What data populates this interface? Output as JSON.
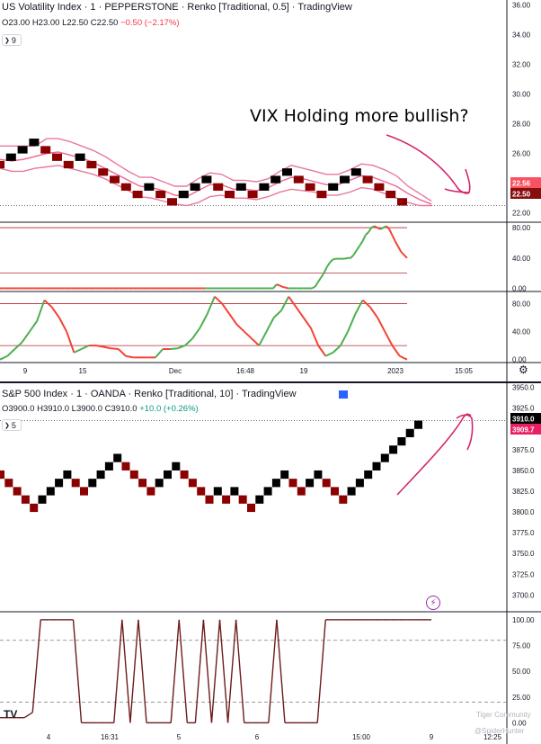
{
  "panel1": {
    "title": "US Volatility Index · 1 · PEPPERSTONE · Renko [Traditional, 0.5] · TradingView",
    "ohlc": {
      "o": "O23.00",
      "h": "H23.00",
      "l": "L22.50",
      "c": "C22.50",
      "change": "−0.50 (−2.17%)"
    },
    "length": "9",
    "annotation": "VIX Holding more bullish?",
    "price_labels": [
      {
        "text": "22.56",
        "color": "#f7525f"
      },
      {
        "text": "22.50",
        "color": "#880e0e"
      }
    ]
  },
  "panel2": {
    "title": "S&P 500 Index · 1 · OANDA · Renko [Traditional, 10] · TradingView",
    "ohlc": {
      "o": "O3900.0",
      "h": "H3910.0",
      "l": "L3900.0",
      "c": "C3910.0",
      "change": "+10.0 (+0.26%)"
    },
    "length": "5",
    "price_labels": [
      {
        "text": "3910.0",
        "color": "#000000"
      },
      {
        "text": "3909.7",
        "color": "#e91e63"
      }
    ]
  },
  "watermark": {
    "line1": "Tiger Community",
    "line2": "@SpiderHunter"
  },
  "icons": {
    "gear": "gear-icon",
    "bolt": "lightning-icon",
    "flag": "flag-icon",
    "logo": "tradingview-logo"
  },
  "chart_data": [
    {
      "type": "renko",
      "name": "vix-price",
      "y_ticks": [
        "22.00",
        "24.00",
        "26.00",
        "28.00",
        "30.00",
        "32.00",
        "34.00",
        "36.00"
      ],
      "ylim": [
        21.5,
        36.2
      ],
      "x_ticks": [
        "9",
        "15",
        "Dec",
        "16:48",
        "19",
        "2023",
        "15:05"
      ],
      "bricks": [
        25.25,
        25.75,
        26.25,
        26.75,
        26.25,
        25.75,
        25.25,
        25.75,
        25.25,
        24.75,
        24.25,
        23.75,
        23.25,
        23.75,
        23.25,
        22.75,
        23.25,
        23.75,
        24.25,
        23.75,
        23.25,
        23.75,
        23.25,
        23.75,
        24.25,
        24.75,
        24.25,
        23.75,
        23.25,
        23.75,
        24.25,
        24.75,
        24.25,
        23.75,
        23.25,
        22.75
      ],
      "bands": {
        "upper": [
          26.5,
          26.5,
          26.5,
          26.5,
          27,
          27,
          26.8,
          26.5,
          26.2,
          25.8,
          25.3,
          24.8,
          24.4,
          24.4,
          24.1,
          23.8,
          23.8,
          24.3,
          24.7,
          24.6,
          24.2,
          24.2,
          24.1,
          24.3,
          24.8,
          25.2,
          25,
          24.8,
          24.6,
          24.6,
          24.9,
          25.3,
          25.2,
          24.9,
          24.5,
          23.8,
          23.3,
          22.8
        ],
        "middle": [
          25.6,
          25.5,
          25.6,
          25.8,
          26,
          26.1,
          25.9,
          25.7,
          25.4,
          25,
          24.6,
          24.2,
          23.8,
          23.7,
          23.5,
          23.2,
          23.1,
          23.5,
          23.9,
          23.9,
          23.6,
          23.6,
          23.5,
          23.7,
          24.1,
          24.4,
          24.3,
          24.1,
          23.9,
          23.9,
          24.2,
          24.5,
          24.4,
          24.1,
          23.8,
          23.3,
          22.9,
          22.6
        ],
        "lower": [
          25,
          24.8,
          24.8,
          25,
          25.1,
          25.2,
          25,
          24.8,
          24.6,
          24.3,
          23.9,
          23.5,
          23.1,
          23,
          22.8,
          22.6,
          22.5,
          22.7,
          23.1,
          23.2,
          23,
          23,
          22.9,
          23.1,
          23.4,
          23.6,
          23.5,
          23.4,
          23.2,
          23.2,
          23.4,
          23.7,
          23.6,
          23.3,
          23,
          22.7,
          22.5,
          22.5
        ]
      }
    },
    {
      "type": "line",
      "name": "vix-oscillator-1",
      "y_ticks": [
        "0.00",
        "40.00",
        "80.00"
      ],
      "ylim": [
        -3,
        86
      ],
      "levels": [
        20,
        80
      ],
      "values": [
        0,
        0,
        0,
        0,
        0,
        0,
        0,
        0,
        0,
        0,
        0,
        0,
        0,
        0,
        0,
        0,
        0,
        0,
        0,
        0,
        0,
        0,
        0,
        0,
        0,
        0,
        0,
        0,
        0,
        0,
        0,
        0,
        0,
        0,
        0,
        0,
        0,
        0,
        0,
        0,
        0,
        0,
        0,
        0,
        0,
        0,
        0,
        0,
        0,
        0,
        0,
        0,
        0,
        0,
        0,
        0,
        0,
        0,
        0,
        0,
        0,
        0,
        0,
        0,
        0,
        0,
        0,
        0,
        0,
        0,
        0,
        0,
        0,
        0,
        0,
        0,
        0,
        0,
        0,
        0,
        0,
        0,
        0,
        0,
        0,
        0,
        0,
        0,
        0,
        0,
        0,
        0,
        0,
        5,
        4,
        2,
        1,
        0,
        0,
        0,
        0,
        0,
        0,
        0,
        0,
        0,
        2,
        8,
        14,
        20,
        28,
        34,
        38,
        39,
        39,
        39,
        39,
        40,
        40,
        44,
        50,
        56,
        62,
        70,
        74,
        80,
        82,
        80,
        78,
        80,
        82,
        78,
        70,
        62,
        55,
        48,
        44,
        40
      ]
    },
    {
      "type": "line",
      "name": "vix-oscillator-2",
      "y_ticks": [
        "0.00",
        "40.00",
        "80.00"
      ],
      "ylim": [
        -3,
        96
      ],
      "levels": [
        20,
        80
      ],
      "values": [
        0,
        5,
        15,
        25,
        40,
        55,
        85,
        75,
        60,
        40,
        10,
        15,
        20,
        20,
        18,
        16,
        15,
        5,
        3,
        3,
        3,
        3,
        15,
        15,
        16,
        20,
        30,
        45,
        65,
        90,
        80,
        65,
        50,
        40,
        30,
        20,
        40,
        60,
        70,
        90,
        75,
        60,
        45,
        20,
        5,
        10,
        20,
        40,
        65,
        85,
        75,
        60,
        40,
        20,
        5,
        0
      ]
    },
    {
      "type": "renko",
      "name": "spx-price",
      "y_ticks": [
        "3700.0",
        "3725.0",
        "3750.0",
        "3775.0",
        "3800.0",
        "3825.0",
        "3850.0",
        "3875.0",
        "3900.0",
        "3925.0",
        "3950.0"
      ],
      "ylim": [
        3682,
        3955
      ],
      "x_ticks": [
        "4",
        "16:31",
        "5",
        "6",
        "15:00",
        "9",
        "12:25"
      ],
      "bricks": [
        3845,
        3835,
        3825,
        3815,
        3805,
        3815,
        3825,
        3835,
        3845,
        3835,
        3825,
        3835,
        3845,
        3855,
        3865,
        3855,
        3845,
        3835,
        3825,
        3835,
        3845,
        3855,
        3845,
        3835,
        3825,
        3815,
        3825,
        3815,
        3825,
        3815,
        3805,
        3815,
        3825,
        3835,
        3845,
        3835,
        3825,
        3835,
        3845,
        3835,
        3825,
        3815,
        3825,
        3835,
        3845,
        3855,
        3865,
        3875,
        3885,
        3895,
        3905
      ]
    },
    {
      "type": "line",
      "name": "spx-oscillator",
      "y_ticks": [
        "0.00",
        "25.00",
        "50.00",
        "75.00",
        "100.00"
      ],
      "ylim": [
        -4,
        106
      ],
      "levels": [
        20,
        80
      ],
      "values": [
        5,
        5,
        5,
        5,
        10,
        100,
        100,
        100,
        100,
        100,
        0,
        0,
        0,
        0,
        0,
        100,
        0,
        100,
        0,
        0,
        0,
        0,
        100,
        0,
        0,
        100,
        0,
        100,
        0,
        100,
        0,
        0,
        0,
        0,
        100,
        0,
        0,
        0,
        0,
        0,
        100,
        100,
        100,
        100,
        100,
        100,
        100,
        100,
        100,
        100,
        100,
        100,
        100,
        100
      ]
    }
  ]
}
